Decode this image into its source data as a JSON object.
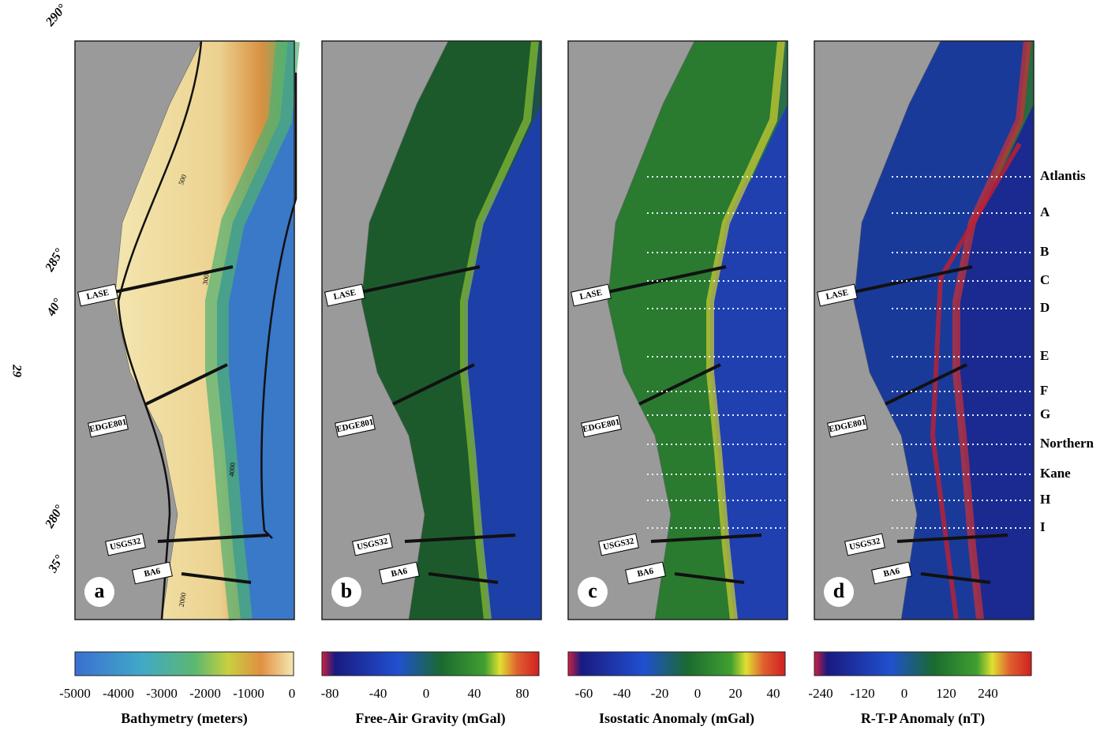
{
  "page_number": "29",
  "coordinates": [
    "290°",
    "285°",
    "40°",
    "280°",
    "35°"
  ],
  "panel_letters": [
    "a",
    "b",
    "c",
    "d"
  ],
  "profiles": [
    "LASE",
    "EDGE801",
    "USGS32",
    "BA6"
  ],
  "contour_labels": [
    "500",
    "3000",
    "4000",
    "2000"
  ],
  "profile_lines": [
    "Atlantis",
    "A",
    "B",
    "C",
    "D",
    "E",
    "F",
    "G",
    "Northern",
    "Kane",
    "H",
    "I"
  ],
  "colorbars": [
    {
      "title": "Bathymetry (meters)",
      "ticks": [
        "-5000",
        "-4000",
        "-3000",
        "-2000",
        "-1000",
        "0"
      ]
    },
    {
      "title": "Free-Air Gravity (mGal)",
      "ticks": [
        "-80",
        "-40",
        "0",
        "40",
        "80"
      ]
    },
    {
      "title": "Isostatic Anomaly (mGal)",
      "ticks": [
        "-60",
        "-40",
        "-20",
        "0",
        "20",
        "40"
      ]
    },
    {
      "title": "R-T-P Anomaly (nT)",
      "ticks": [
        "-240",
        "-120",
        "0",
        "120",
        "240"
      ]
    }
  ]
}
